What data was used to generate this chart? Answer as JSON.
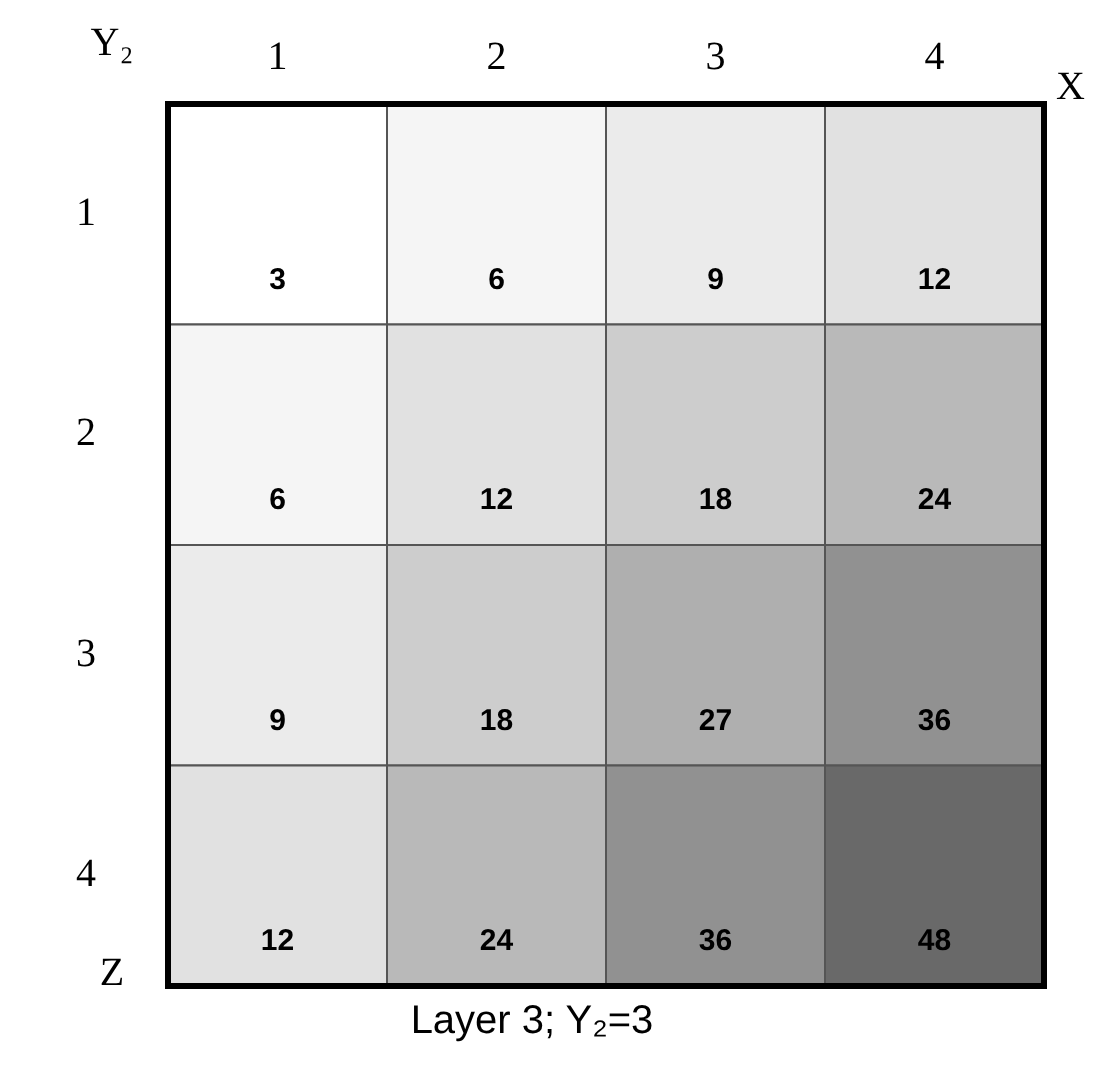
{
  "chart_data": {
    "type": "heatmap",
    "title": "Layer 3; Y₂=3",
    "xlabel": "X",
    "ylabel": "Z",
    "annotations": [
      "Y₂"
    ],
    "categories": [
      "1",
      "2",
      "3",
      "4"
    ],
    "y_categories": [
      "1",
      "2",
      "3",
      "4"
    ],
    "cells": [
      [
        3,
        6,
        9,
        12
      ],
      [
        6,
        12,
        18,
        24
      ],
      [
        9,
        18,
        27,
        36
      ],
      [
        12,
        24,
        36,
        48
      ]
    ],
    "data_labels": true
  }
}
